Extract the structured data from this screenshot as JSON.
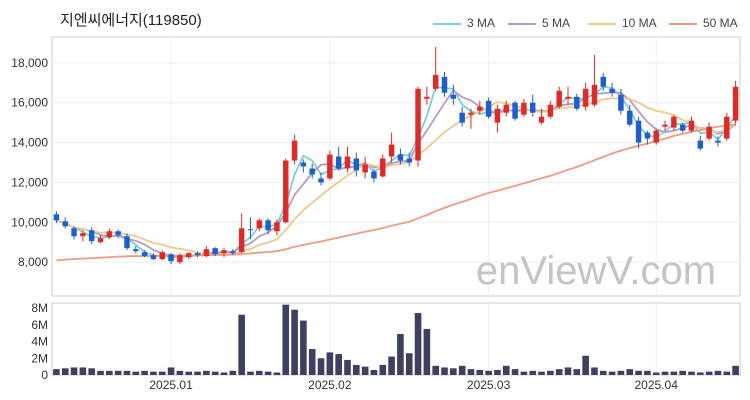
{
  "title": "지엔씨에너지(119850)",
  "watermark": "enViewV.com",
  "colors": {
    "up": "#e02a2a",
    "down": "#1e5fcf",
    "volume": "#3e4062",
    "grid": "#eeeeee",
    "frame": "#cccccc"
  },
  "legend": [
    {
      "label": "3 MA",
      "color": "#7ecfd0"
    },
    {
      "label": "5 MA",
      "color": "#b39cc8"
    },
    {
      "label": "10 MA",
      "color": "#efc98a"
    },
    {
      "label": "50 MA",
      "color": "#f29a80"
    }
  ],
  "chart_data": [
    {
      "type": "candlestick",
      "title": "지엔씨에너지(119850)",
      "ylim": [
        6300,
        19300
      ],
      "yticks": [
        8000,
        10000,
        12000,
        14000,
        16000,
        18000
      ],
      "ytick_labels": [
        "8,000",
        "10,000",
        "12,000",
        "14,000",
        "16,000",
        "18,000"
      ],
      "xtick_labels": [
        "2025.01",
        "2025.02",
        "2025.03",
        "2025.04"
      ],
      "xtick_index": [
        13,
        31,
        49,
        68
      ],
      "ohlc": [
        [
          10400,
          10550,
          9950,
          10100
        ],
        [
          10050,
          10250,
          9700,
          9800
        ],
        [
          9700,
          9800,
          9150,
          9300
        ],
        [
          9300,
          9600,
          9050,
          9450
        ],
        [
          9600,
          9750,
          8900,
          9050
        ],
        [
          9000,
          9350,
          8950,
          9200
        ],
        [
          9250,
          9700,
          9150,
          9550
        ],
        [
          9550,
          9650,
          9200,
          9350
        ],
        [
          9300,
          9450,
          8600,
          8700
        ],
        [
          8650,
          8800,
          8450,
          8550
        ],
        [
          8500,
          8600,
          8250,
          8300
        ],
        [
          8350,
          8450,
          8100,
          8150
        ],
        [
          8150,
          8600,
          8100,
          8500
        ],
        [
          8400,
          8450,
          7900,
          8050
        ],
        [
          8000,
          8450,
          7900,
          8350
        ],
        [
          8250,
          8500,
          8150,
          8450
        ],
        [
          8450,
          8550,
          8250,
          8350
        ],
        [
          8300,
          8800,
          8250,
          8650
        ],
        [
          8700,
          8750,
          8300,
          8400
        ],
        [
          8450,
          8700,
          8250,
          8600
        ],
        [
          8550,
          8650,
          8350,
          8450
        ],
        [
          8500,
          10450,
          8450,
          9700
        ],
        [
          9650,
          10250,
          9150,
          9600
        ],
        [
          9700,
          10200,
          9550,
          10100
        ],
        [
          10100,
          10200,
          9400,
          9600
        ],
        [
          9550,
          10150,
          9350,
          10000
        ],
        [
          10000,
          13200,
          9950,
          13100
        ],
        [
          13100,
          14400,
          12900,
          14100
        ],
        [
          13000,
          13150,
          12500,
          12800
        ],
        [
          12700,
          12950,
          12200,
          12400
        ],
        [
          12200,
          12500,
          11850,
          12000
        ],
        [
          12200,
          13600,
          12100,
          13400
        ],
        [
          13300,
          13800,
          12600,
          12700
        ],
        [
          12700,
          13800,
          12500,
          13300
        ],
        [
          13200,
          13500,
          12300,
          12600
        ],
        [
          12500,
          13300,
          12200,
          12900
        ],
        [
          12550,
          12650,
          12000,
          12200
        ],
        [
          12300,
          13400,
          12250,
          13200
        ],
        [
          13300,
          14500,
          13000,
          13900
        ],
        [
          13400,
          13700,
          12900,
          13100
        ],
        [
          13200,
          13500,
          12800,
          13000
        ],
        [
          13100,
          16800,
          12800,
          16700
        ],
        [
          16200,
          16800,
          15900,
          16300
        ],
        [
          16700,
          18800,
          16600,
          17400
        ],
        [
          17300,
          17550,
          16300,
          16500
        ],
        [
          16400,
          16900,
          15900,
          16200
        ],
        [
          15500,
          15800,
          14800,
          15000
        ],
        [
          15400,
          15700,
          14700,
          15500
        ],
        [
          15600,
          16100,
          15400,
          15800
        ],
        [
          16100,
          16250,
          15200,
          15300
        ],
        [
          15000,
          15900,
          14500,
          15700
        ],
        [
          15500,
          16100,
          15300,
          15900
        ],
        [
          16000,
          16100,
          15100,
          15200
        ],
        [
          15400,
          16200,
          15300,
          16000
        ],
        [
          16000,
          16400,
          15300,
          15500
        ],
        [
          15000,
          15700,
          14900,
          15300
        ],
        [
          15300,
          16100,
          15200,
          15900
        ],
        [
          15800,
          16800,
          15700,
          16600
        ],
        [
          16200,
          16800,
          15900,
          16300
        ],
        [
          16300,
          16450,
          15600,
          15700
        ],
        [
          15800,
          17000,
          15600,
          16700
        ],
        [
          15900,
          18400,
          15800,
          16900
        ],
        [
          17300,
          17500,
          16600,
          16800
        ],
        [
          16700,
          17000,
          16300,
          16500
        ],
        [
          16400,
          16700,
          15400,
          15600
        ],
        [
          15600,
          15900,
          14800,
          14900
        ],
        [
          15100,
          15300,
          13700,
          14000
        ],
        [
          14500,
          14600,
          13900,
          14200
        ],
        [
          14000,
          14700,
          13900,
          14600
        ],
        [
          14800,
          15100,
          14600,
          14900
        ],
        [
          14750,
          15400,
          14600,
          15300
        ],
        [
          14900,
          15000,
          14500,
          14600
        ],
        [
          14600,
          15300,
          14500,
          15100
        ],
        [
          14100,
          14350,
          13600,
          13700
        ],
        [
          14200,
          15000,
          14100,
          14800
        ],
        [
          14100,
          14300,
          13800,
          14000
        ],
        [
          14200,
          15500,
          14100,
          15300
        ],
        [
          15100,
          17100,
          14900,
          16800
        ]
      ],
      "volume_ylim": [
        0,
        8600000
      ],
      "volume_yticks": [
        0,
        2000000,
        4000000,
        6000000,
        8000000
      ],
      "volume_ytick_labels": [
        "0",
        "2M",
        "4M",
        "6M",
        "8M"
      ],
      "volume": [
        700000,
        800000,
        900000,
        900000,
        800000,
        500000,
        500000,
        500000,
        500000,
        400000,
        500000,
        400000,
        400000,
        900000,
        500000,
        400000,
        400000,
        500000,
        400000,
        300000,
        500000,
        7200000,
        400000,
        500000,
        400000,
        300000,
        8400000,
        7800000,
        6500000,
        3100000,
        2000000,
        2700000,
        2500000,
        1800000,
        1200000,
        1000000,
        600000,
        1200000,
        2200000,
        4900000,
        2600000,
        7400000,
        5500000,
        1100000,
        900000,
        800000,
        1100000,
        700000,
        600000,
        500000,
        600000,
        1100000,
        700000,
        400000,
        500000,
        400000,
        500000,
        700000,
        900000,
        700000,
        2300000,
        900000,
        500000,
        400000,
        500000,
        700000,
        500000,
        500000,
        300000,
        400000,
        400000,
        500000,
        400000,
        300000,
        400000,
        500000,
        400000,
        1100000
      ]
    }
  ]
}
